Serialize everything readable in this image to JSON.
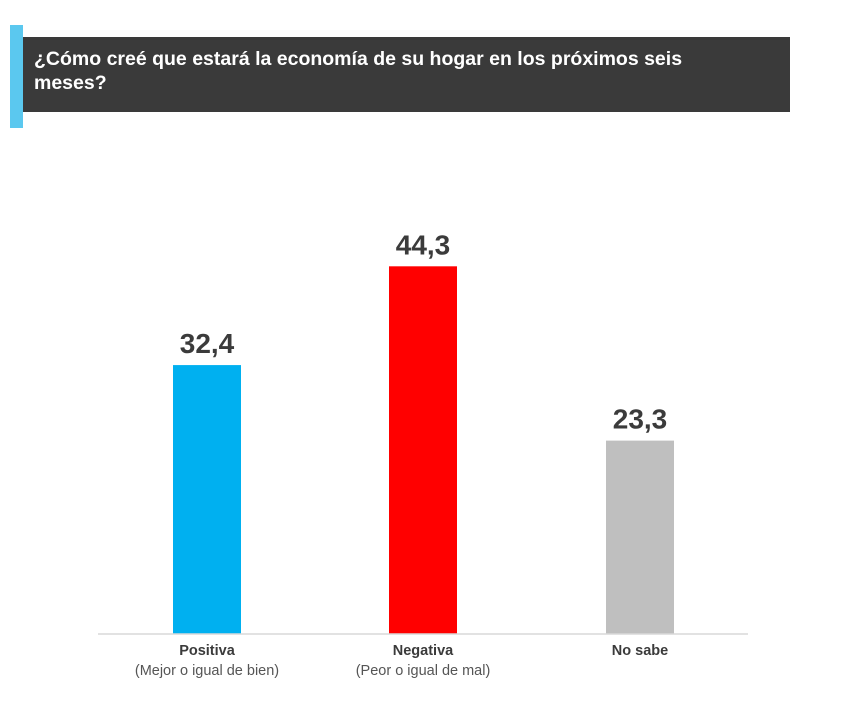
{
  "chart_data": {
    "type": "bar",
    "title": "¿Cómo creé que estará la economía de su hogar en los próximos seis meses?",
    "categories": [
      "Positiva",
      "Negativa",
      "No sabe"
    ],
    "category_sublabels": [
      "(Mejor o igual de bien)",
      "(Peor o igual de mal)",
      ""
    ],
    "value_labels": [
      "32,4",
      "44,3",
      "23,3"
    ],
    "values": [
      32.4,
      44.3,
      23.3
    ],
    "colors": [
      "#00b0f0",
      "#ff0000",
      "#bfbfbf"
    ],
    "ylim": [
      0,
      50
    ],
    "grid": false,
    "legend": "none"
  },
  "theme": {
    "accent": "#5bc8ef",
    "title_background": "#3a3a3a"
  }
}
